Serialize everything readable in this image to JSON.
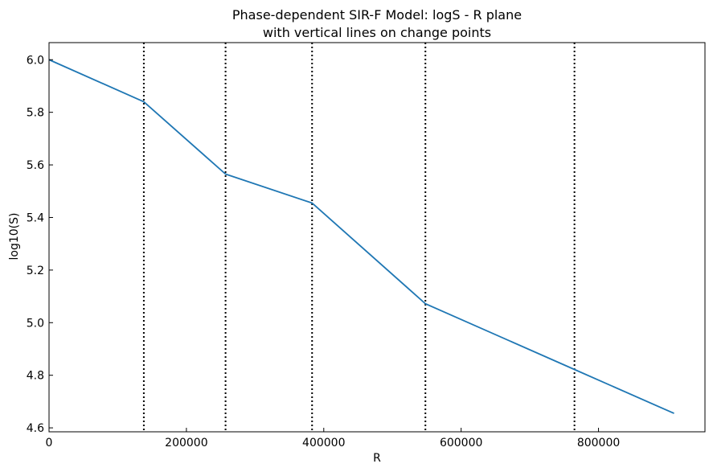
{
  "chart_data": {
    "type": "line",
    "title_lines": [
      "Phase-dependent SIR-F Model: logS - R plane",
      "with vertical lines on change points"
    ],
    "xlabel": "R",
    "ylabel": "log10(S)",
    "xlim": [
      0,
      955000
    ],
    "ylim": [
      4.585,
      6.065
    ],
    "x_ticks": [
      0,
      200000,
      400000,
      600000,
      800000
    ],
    "x_tick_labels": [
      "0",
      "200000",
      "400000",
      "600000",
      "800000"
    ],
    "y_ticks": [
      4.6,
      4.8,
      5.0,
      5.2,
      5.4,
      5.6,
      5.8,
      6.0
    ],
    "y_tick_labels": [
      "4.6",
      "4.8",
      "5.0",
      "5.2",
      "5.4",
      "5.6",
      "5.8",
      "6.0"
    ],
    "grid": false,
    "series": [
      {
        "color": "#1f77b4",
        "x": [
          0,
          138000,
          257000,
          383000,
          548000,
          765000,
          910000
        ],
        "y": [
          6.0,
          5.84,
          5.565,
          5.455,
          5.072,
          4.822,
          4.655
        ]
      }
    ],
    "change_points": {
      "style": "dotted",
      "color": "#000000",
      "x": [
        138000,
        257000,
        383000,
        548000,
        765000
      ]
    }
  }
}
